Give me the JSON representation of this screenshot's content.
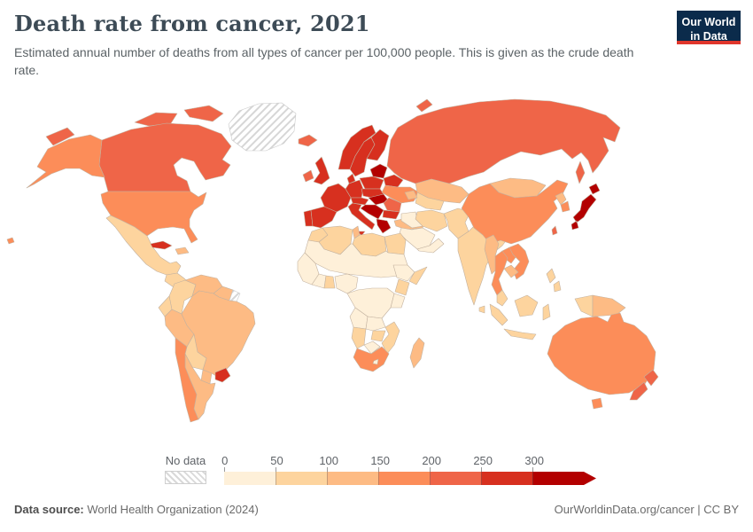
{
  "header": {
    "title": "Death rate from cancer, 2021",
    "subtitle": "Estimated annual number of deaths from all types of cancer per 100,000 people. This is given as the crude death rate.",
    "logo": {
      "line1": "Our World",
      "line2": "in Data",
      "bg_color": "#0b2b4b",
      "accent_color": "#e0362c"
    }
  },
  "legend": {
    "no_data_label": "No data",
    "ticks": [
      "0",
      "50",
      "100",
      "150",
      "200",
      "250",
      "300"
    ],
    "bins": [
      "0-50",
      "50-100",
      "100-150",
      "150-200",
      "200-250",
      "250-300",
      "300+"
    ],
    "bin_colors": {
      "0-50": "#fef0d9",
      "50-100": "#fdd49e",
      "100-150": "#fdbb84",
      "150-200": "#fc8d59",
      "200-250": "#ef6548",
      "250-300": "#d7301f",
      "300+": "#b30000"
    },
    "arrow_color": "#b30000",
    "no_data_pattern": "diagonal-hatch"
  },
  "footer": {
    "source_label": "Data source:",
    "source_value": " World Health Organization (2024)",
    "right_text": "OurWorldinData.org/cancer | CC BY"
  },
  "chart_data": {
    "type": "heatmap",
    "subtype": "world-choropleth",
    "title": "Death rate from cancer, 2021",
    "year": 2021,
    "unit": "deaths per 100,000 people (crude rate)",
    "legend_bins": [
      "0-50",
      "50-100",
      "100-150",
      "150-200",
      "200-250",
      "250-300",
      "300+",
      "no-data"
    ],
    "regions": {
      "greenland": {
        "name": "Greenland",
        "bin": "no-data"
      },
      "canada": {
        "name": "Canada",
        "bin": "200-250"
      },
      "canada-arctic-1": {
        "name": "Canada (Arctic islands)",
        "bin": "200-250"
      },
      "canada-arctic-2": {
        "name": "Canada (Arctic islands)",
        "bin": "200-250"
      },
      "alaska": {
        "name": "United States (Alaska)",
        "bin": "150-200"
      },
      "usa": {
        "name": "United States",
        "bin": "150-200"
      },
      "hawaii": {
        "name": "United States (Hawaii)",
        "bin": "150-200"
      },
      "chukotka": {
        "name": "Russia (Chukotka)",
        "bin": "200-250"
      },
      "mexico": {
        "name": "Mexico",
        "bin": "50-100"
      },
      "central-america": {
        "name": "Central America",
        "bin": "50-100"
      },
      "cuba": {
        "name": "Cuba",
        "bin": "250-300"
      },
      "hispaniola": {
        "name": "Haiti / Dominican Republic",
        "bin": "100-150"
      },
      "colombia": {
        "name": "Colombia",
        "bin": "50-100"
      },
      "venezuela": {
        "name": "Venezuela",
        "bin": "100-150"
      },
      "guyanas": {
        "name": "Guyana / Suriname",
        "bin": "100-150"
      },
      "french-guiana": {
        "name": "French Guiana",
        "bin": "no-data"
      },
      "ecuador": {
        "name": "Ecuador",
        "bin": "50-100"
      },
      "peru": {
        "name": "Peru",
        "bin": "100-150"
      },
      "brazil": {
        "name": "Brazil",
        "bin": "100-150"
      },
      "bolivia": {
        "name": "Bolivia",
        "bin": "50-100"
      },
      "paraguay": {
        "name": "Paraguay",
        "bin": "100-150"
      },
      "uruguay": {
        "name": "Uruguay",
        "bin": "250-300"
      },
      "argentina": {
        "name": "Argentina",
        "bin": "100-150"
      },
      "chile": {
        "name": "Chile",
        "bin": "150-200"
      },
      "iceland": {
        "name": "Iceland",
        "bin": "200-250"
      },
      "ireland": {
        "name": "Ireland",
        "bin": "200-250"
      },
      "uk": {
        "name": "United Kingdom",
        "bin": "250-300"
      },
      "norway": {
        "name": "Norway",
        "bin": "250-300"
      },
      "sweden": {
        "name": "Sweden",
        "bin": "250-300"
      },
      "finland": {
        "name": "Finland",
        "bin": "250-300"
      },
      "denmark": {
        "name": "Denmark",
        "bin": "250-300"
      },
      "baltics": {
        "name": "Baltic states",
        "bin": "300+"
      },
      "belarus": {
        "name": "Belarus",
        "bin": "250-300"
      },
      "poland": {
        "name": "Poland",
        "bin": "250-300"
      },
      "germany": {
        "name": "Germany",
        "bin": "250-300"
      },
      "france": {
        "name": "France",
        "bin": "250-300"
      },
      "portugal": {
        "name": "Portugal",
        "bin": "250-300"
      },
      "spain": {
        "name": "Spain",
        "bin": "250-300"
      },
      "alpine": {
        "name": "Austria / Switzerland",
        "bin": "250-300"
      },
      "czech-slovakia": {
        "name": "Czechia / Slovakia",
        "bin": "250-300"
      },
      "hungary": {
        "name": "Hungary",
        "bin": "300+"
      },
      "romania": {
        "name": "Romania",
        "bin": "200-250"
      },
      "west-balkans": {
        "name": "Croatia / Bosnia / Serbia",
        "bin": "300+"
      },
      "bulgaria": {
        "name": "Bulgaria",
        "bin": "250-300"
      },
      "greece": {
        "name": "Greece",
        "bin": "300+"
      },
      "italy": {
        "name": "Italy",
        "bin": "250-300"
      },
      "ukraine": {
        "name": "Ukraine",
        "bin": "150-200"
      },
      "turkey": {
        "name": "Turkey",
        "bin": "100-150"
      },
      "russia": {
        "name": "Russia",
        "bin": "200-250"
      },
      "kazakhstan": {
        "name": "Kazakhstan",
        "bin": "100-150"
      },
      "central-asia": {
        "name": "Uzbekistan / Turkmenistan",
        "bin": "50-100"
      },
      "caucasus": {
        "name": "Georgia / Armenia / Azerbaijan",
        "bin": "100-150"
      },
      "iran": {
        "name": "Iran",
        "bin": "50-100"
      },
      "iraq-syria": {
        "name": "Iraq / Syria",
        "bin": "0-50"
      },
      "saudi": {
        "name": "Saudi Arabia",
        "bin": "0-50"
      },
      "yemen-oman": {
        "name": "Yemen / Oman",
        "bin": "0-50"
      },
      "afghan-pakistan": {
        "name": "Afghanistan / Pakistan",
        "bin": "50-100"
      },
      "india": {
        "name": "India",
        "bin": "50-100"
      },
      "sri-lanka": {
        "name": "Sri Lanka",
        "bin": "50-100"
      },
      "china": {
        "name": "China",
        "bin": "150-200"
      },
      "mongolia": {
        "name": "Mongolia",
        "bin": "100-150"
      },
      "north-korea": {
        "name": "North Korea",
        "bin": "100-150"
      },
      "south-korea": {
        "name": "South Korea",
        "bin": "150-200"
      },
      "japan": {
        "name": "Japan",
        "bin": "300+"
      },
      "taiwan": {
        "name": "Taiwan",
        "bin": "200-250"
      },
      "myanmar": {
        "name": "Myanmar",
        "bin": "100-150"
      },
      "thailand": {
        "name": "Thailand",
        "bin": "150-200"
      },
      "laos": {
        "name": "Laos",
        "bin": "150-200"
      },
      "vietnam": {
        "name": "Vietnam",
        "bin": "150-200"
      },
      "cambodia": {
        "name": "Cambodia",
        "bin": "100-150"
      },
      "malaysia": {
        "name": "Malaysia",
        "bin": "50-100"
      },
      "indonesia": {
        "name": "Indonesia",
        "bin": "50-100"
      },
      "png": {
        "name": "Papua New Guinea",
        "bin": "100-150"
      },
      "philippines": {
        "name": "Philippines",
        "bin": "50-100"
      },
      "morocco": {
        "name": "Morocco",
        "bin": "50-100"
      },
      "algeria": {
        "name": "Algeria",
        "bin": "50-100"
      },
      "tunisia": {
        "name": "Tunisia",
        "bin": "100-150"
      },
      "libya": {
        "name": "Libya",
        "bin": "50-100"
      },
      "egypt": {
        "name": "Egypt",
        "bin": "50-100"
      },
      "sahel": {
        "name": "Mauritania / Mali / Niger / Chad / Sudan",
        "bin": "0-50"
      },
      "west-africa": {
        "name": "Senegal / Guinea",
        "bin": "0-50"
      },
      "ivory-block": {
        "name": "Cote d'Ivoire",
        "bin": "0-50"
      },
      "ghana": {
        "name": "Ghana",
        "bin": "50-100"
      },
      "nigeria": {
        "name": "Nigeria",
        "bin": "0-50"
      },
      "ethiopia": {
        "name": "Ethiopia",
        "bin": "0-50"
      },
      "somalia": {
        "name": "Somalia",
        "bin": "50-100"
      },
      "kenya": {
        "name": "Kenya",
        "bin": "50-100"
      },
      "central-africa": {
        "name": "DR Congo / Central Africa",
        "bin": "0-50"
      },
      "tanzania": {
        "name": "Tanzania",
        "bin": "0-50"
      },
      "angola": {
        "name": "Angola",
        "bin": "0-50"
      },
      "zambia": {
        "name": "Zambia",
        "bin": "0-50"
      },
      "mozambique": {
        "name": "Mozambique",
        "bin": "50-100"
      },
      "zimbabwe": {
        "name": "Zimbabwe",
        "bin": "50-100"
      },
      "namibia": {
        "name": "Namibia",
        "bin": "50-100"
      },
      "botswana": {
        "name": "Botswana",
        "bin": "0-50"
      },
      "south-africa": {
        "name": "South Africa",
        "bin": "150-200"
      },
      "lesotho": {
        "name": "Lesotho",
        "bin": "0-50"
      },
      "madagascar": {
        "name": "Madagascar",
        "bin": "100-150"
      },
      "australia": {
        "name": "Australia",
        "bin": "150-200"
      },
      "tasmania": {
        "name": "Australia (Tasmania)",
        "bin": "150-200"
      },
      "nz": {
        "name": "New Zealand",
        "bin": "200-250"
      }
    }
  }
}
